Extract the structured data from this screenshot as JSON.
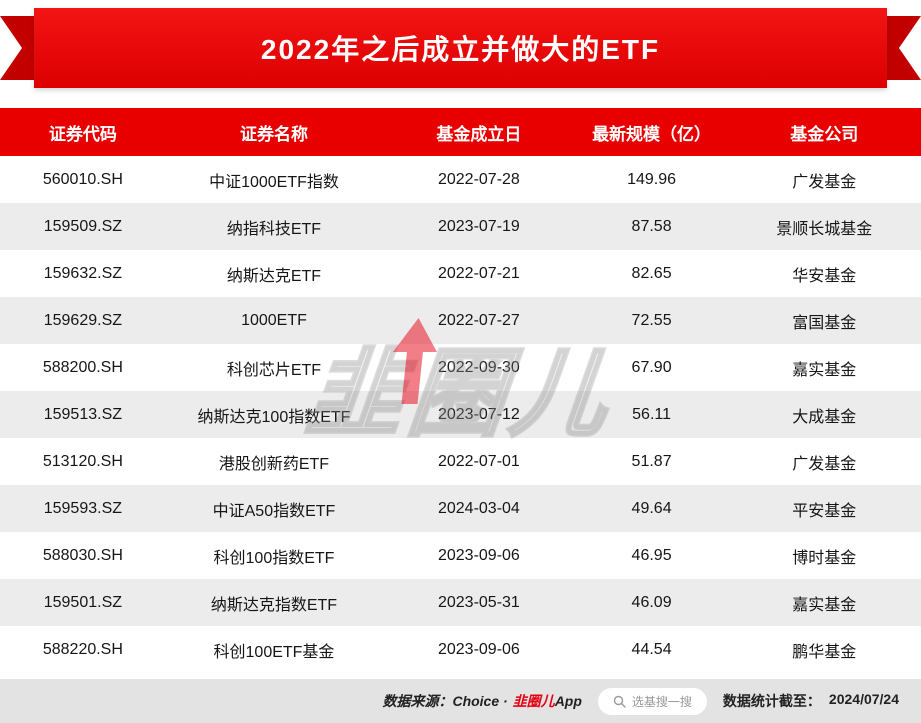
{
  "banner": {
    "title": "2022年之后成立并做大的ETF"
  },
  "chart_data": {
    "type": "table",
    "title": "2022年之后成立并做大的ETF",
    "columns": [
      "证券代码",
      "证券名称",
      "基金成立日",
      "最新规模（亿）",
      "基金公司"
    ],
    "rows": [
      [
        "560010.SH",
        "中证1000ETF指数",
        "2022-07-28",
        "149.96",
        "广发基金"
      ],
      [
        "159509.SZ",
        "纳指科技ETF",
        "2023-07-19",
        "87.58",
        "景顺长城基金"
      ],
      [
        "159632.SZ",
        "纳斯达克ETF",
        "2022-07-21",
        "82.65",
        "华安基金"
      ],
      [
        "159629.SZ",
        "1000ETF",
        "2022-07-27",
        "72.55",
        "富国基金"
      ],
      [
        "588200.SH",
        "科创芯片ETF",
        "2022-09-30",
        "67.90",
        "嘉实基金"
      ],
      [
        "159513.SZ",
        "纳斯达克100指数ETF",
        "2023-07-12",
        "56.11",
        "大成基金"
      ],
      [
        "513120.SH",
        "港股创新药ETF",
        "2022-07-01",
        "51.87",
        "广发基金"
      ],
      [
        "159593.SZ",
        "中证A50指数ETF",
        "2024-03-04",
        "49.64",
        "平安基金"
      ],
      [
        "588030.SH",
        "科创100指数ETF",
        "2023-09-06",
        "46.95",
        "博时基金"
      ],
      [
        "159501.SZ",
        "纳斯达克指数ETF",
        "2023-05-31",
        "46.09",
        "嘉实基金"
      ],
      [
        "588220.SH",
        "科创100ETF基金",
        "2023-09-06",
        "44.54",
        "鹏华基金"
      ]
    ]
  },
  "watermark": {
    "text": "韭圈儿"
  },
  "footer": {
    "source_prefix": "数据来源：Choice ·",
    "source_logo": "韭圈儿",
    "source_suffix": "App",
    "search_text": "选基搜一搜",
    "stats_label": "数据统计截至：",
    "stats_date": "2024/07/24"
  },
  "colors": {
    "accent_red": "#e80000",
    "ribbon_dark_red": "#c30000",
    "row_alt": "#ececec",
    "footer_bg": "#e3e3e3"
  }
}
